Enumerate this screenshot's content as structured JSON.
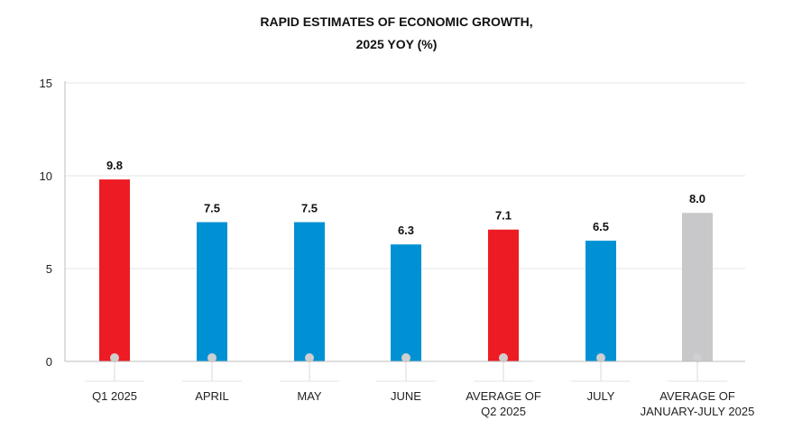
{
  "chart_data": {
    "type": "bar",
    "title_lines": [
      "RAPID ESTIMATES OF ECONOMIC GROWTH,",
      "2025 YOY (%)"
    ],
    "categories": [
      [
        "Q1 2025"
      ],
      [
        "APRIL"
      ],
      [
        "MAY"
      ],
      [
        "JUNE"
      ],
      [
        "AVERAGE OF",
        "Q2 2025"
      ],
      [
        "JULY"
      ],
      [
        "AVERAGE OF",
        "JANUARY-JULY 2025"
      ]
    ],
    "values": [
      9.8,
      7.5,
      7.5,
      6.3,
      7.1,
      6.5,
      8.0
    ],
    "data_labels": [
      "9.8",
      "7.5",
      "7.5",
      "6.3",
      "7.1",
      "6.5",
      "8.0"
    ],
    "bar_colors": [
      "#ed1c24",
      "#0091d5",
      "#0091d5",
      "#0091d5",
      "#ed1c24",
      "#0091d5",
      "#c8c8ca"
    ],
    "marker_color": "#cfcfcf",
    "y_ticks": [
      "0",
      "5",
      "10",
      "15"
    ],
    "ylim": [
      0,
      15
    ],
    "grid": true
  }
}
